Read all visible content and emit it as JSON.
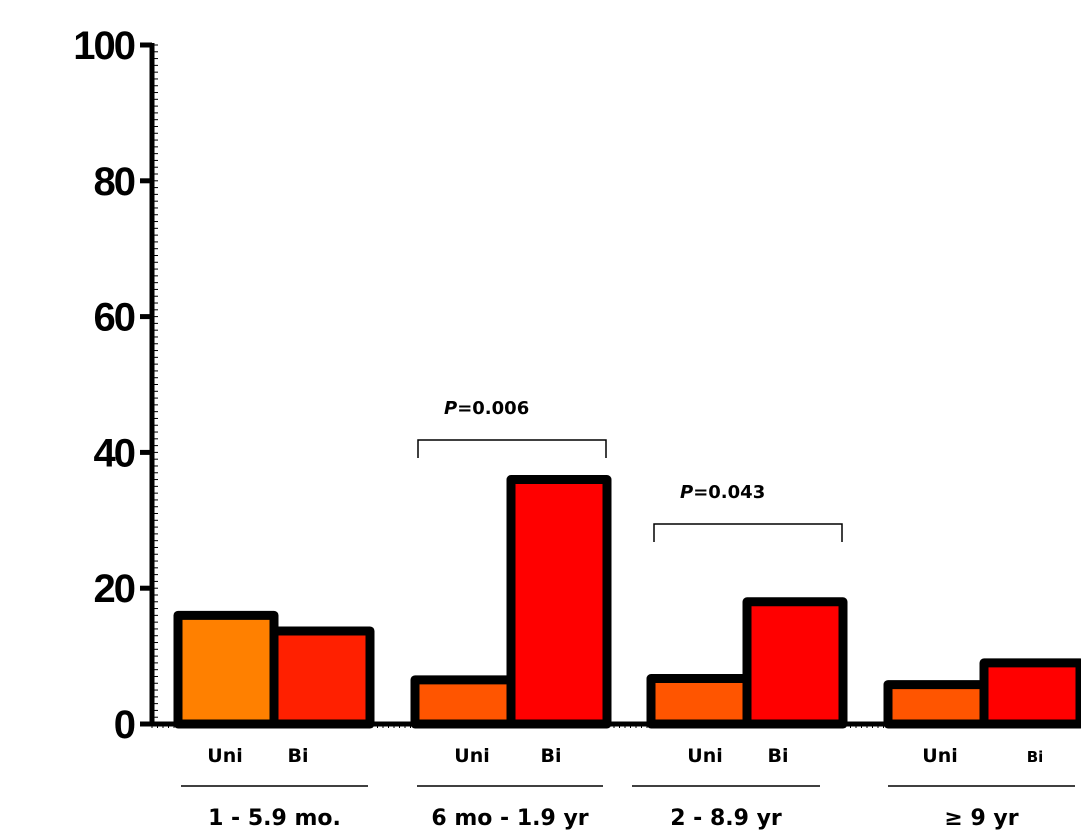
{
  "chart_data": {
    "type": "bar",
    "ylim": [
      0,
      100
    ],
    "yticks": [
      0,
      20,
      40,
      60,
      80,
      100
    ],
    "grid": false,
    "groups": [
      {
        "label": "1 - 5.9 mo.",
        "bars": [
          {
            "label": "Uni",
            "value": 16.0,
            "color": "#FF8000"
          },
          {
            "label": "Bi",
            "value": 13.7,
            "color": "#FF2000"
          }
        ]
      },
      {
        "label": "6 mo - 1.9 yr",
        "bars": [
          {
            "label": "Uni",
            "value": 6.5,
            "color": "#FF5500"
          },
          {
            "label": "Bi",
            "value": 36.0,
            "color": "#FF0000"
          }
        ],
        "annotation": {
          "p_label": "P",
          "p_value": "=0.006"
        }
      },
      {
        "label": "2 - 8.9 yr",
        "bars": [
          {
            "label": "Uni",
            "value": 6.7,
            "color": "#FF5500"
          },
          {
            "label": "Bi",
            "value": 18.0,
            "color": "#FF0000"
          }
        ],
        "annotation": {
          "p_label": "P",
          "p_value": "=0.043"
        }
      },
      {
        "label": "≥ 9 yr",
        "bars": [
          {
            "label": "Uni",
            "value": 5.8,
            "color": "#FF5500"
          },
          {
            "label": "Bi",
            "value": 9.0,
            "color": "#FF0000"
          }
        ]
      }
    ]
  }
}
